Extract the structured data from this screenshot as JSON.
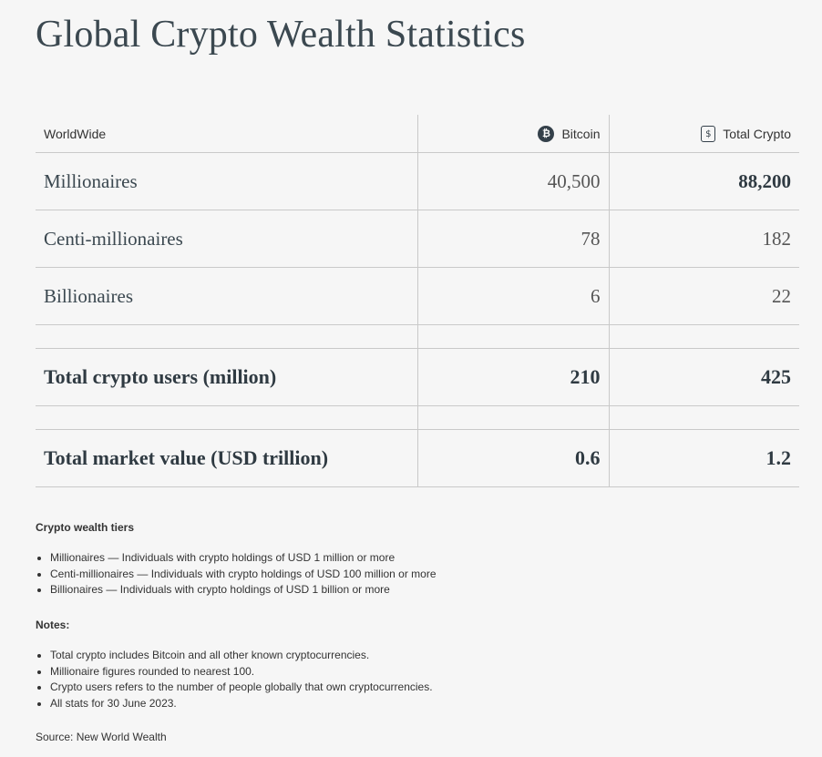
{
  "title": "Global Crypto Wealth Statistics",
  "table": {
    "headers": {
      "region": "WorldWide",
      "bitcoin": "Bitcoin",
      "total": "Total Crypto"
    },
    "rows": [
      {
        "label": "Millionaires",
        "bitcoin": "40,500",
        "total": "88,200"
      },
      {
        "label": "Centi-millionaires",
        "bitcoin": "78",
        "total": "182"
      },
      {
        "label": "Billionaires",
        "bitcoin": "6",
        "total": "22"
      }
    ],
    "users": {
      "label": "Total crypto users (million)",
      "bitcoin": "210",
      "total": "425"
    },
    "market": {
      "label": "Total market value (USD trillion)",
      "bitcoin": "0.6",
      "total": "1.2"
    }
  },
  "tiers": {
    "heading": "Crypto wealth tiers",
    "items": [
      "Millionaires — Individuals with crypto holdings of USD 1 million or more",
      "Centi-millionaires — Individuals with crypto holdings of USD 100 million or more",
      "Billionaires — Individuals with crypto holdings of USD 1 billion or more"
    ]
  },
  "notes": {
    "heading": "Notes:",
    "items": [
      "Total crypto includes Bitcoin and all other known cryptocurrencies.",
      "Millionaire figures rounded to nearest 100.",
      "Crypto users refers to the number of people globally that own cryptocurrencies.",
      "All stats for 30 June 2023."
    ]
  },
  "source": "Source: New World Wealth",
  "icons": {
    "bitcoin": "bitcoin-icon",
    "total": "crypto-coin-icon"
  }
}
